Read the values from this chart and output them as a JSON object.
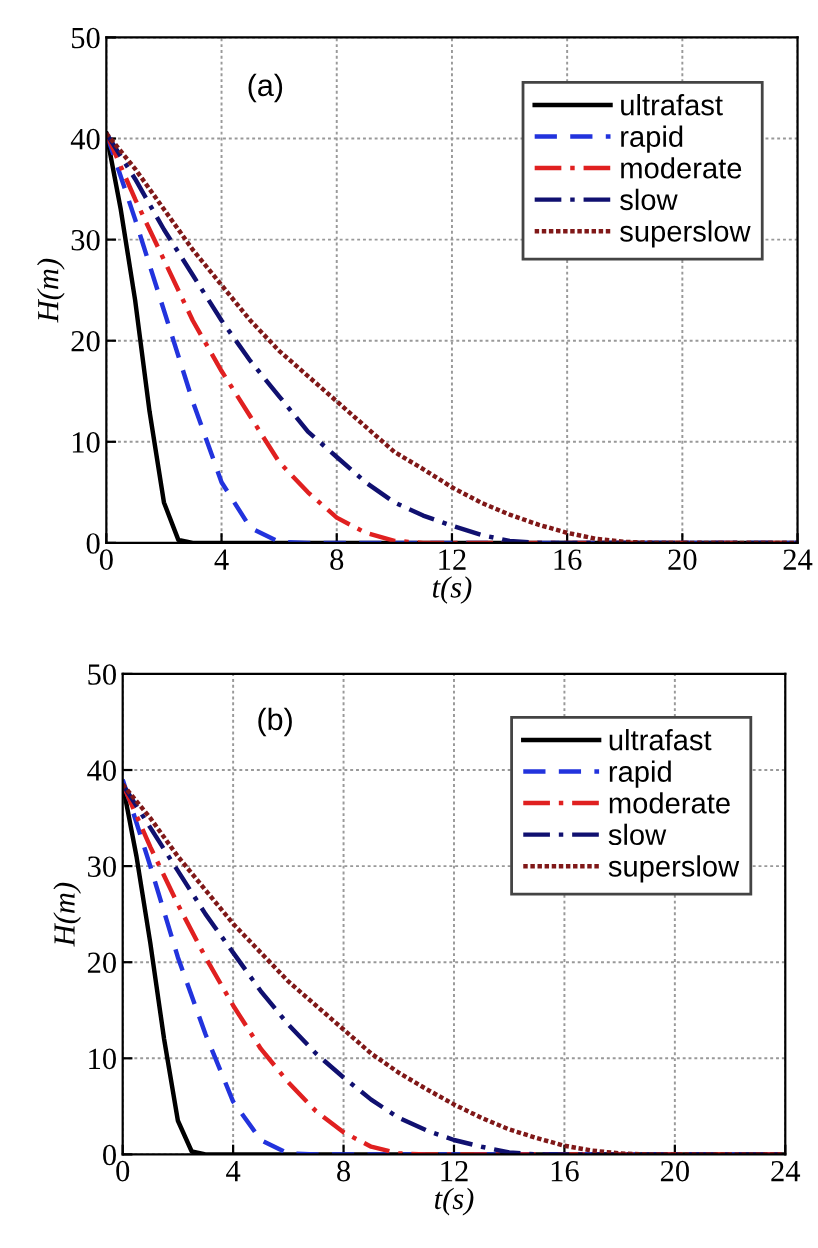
{
  "chart_data": [
    {
      "type": "line",
      "xlabel": "t(s)",
      "ylabel": "H(m)",
      "annotations": [
        "(a)"
      ],
      "xlim": [
        0,
        24
      ],
      "ylim": [
        0,
        50
      ],
      "xticks": [
        0,
        4,
        8,
        12,
        16,
        20,
        24
      ],
      "yticks": [
        0,
        10,
        20,
        30,
        40,
        50
      ],
      "grid": true,
      "legend": "top right",
      "series": [
        {
          "name": "ultrafast",
          "color": "#000000",
          "line_style": "solid",
          "x": [
            0,
            0.5,
            1,
            1.5,
            2,
            2.5,
            3,
            24
          ],
          "values": [
            40.5,
            33,
            24,
            13,
            4,
            0.3,
            0,
            0
          ]
        },
        {
          "name": "rapid",
          "color": "#2233dd",
          "line_style": "dashed",
          "x": [
            0,
            1,
            2,
            3,
            4,
            5,
            6,
            7,
            24
          ],
          "values": [
            40.5,
            32,
            23,
            14,
            6,
            1.5,
            0.1,
            0,
            0
          ]
        },
        {
          "name": "moderate",
          "color": "#e02020",
          "line_style": "dashdot",
          "x": [
            0,
            1,
            2,
            3,
            4,
            5,
            6,
            7,
            8,
            9,
            10,
            11,
            24
          ],
          "values": [
            40.5,
            34,
            28,
            22,
            17,
            12.5,
            8,
            5,
            2.5,
            1,
            0.2,
            0,
            0
          ]
        },
        {
          "name": "slow",
          "color": "#101070",
          "line_style": "dashdot",
          "x": [
            0,
            1,
            2,
            3,
            4,
            5,
            6,
            7,
            8,
            9,
            10,
            11,
            12,
            13,
            14,
            15,
            24
          ],
          "values": [
            40.5,
            36,
            31,
            26.5,
            22,
            18,
            14.5,
            11,
            8.5,
            6,
            4,
            2.7,
            1.7,
            0.8,
            0.2,
            0,
            0
          ]
        },
        {
          "name": "superslow",
          "color": "#801818",
          "line_style": "dotted",
          "x": [
            0,
            1,
            2,
            3,
            4,
            5,
            6,
            7,
            8,
            9,
            10,
            11,
            12,
            13,
            14,
            15,
            16,
            17,
            18,
            19,
            24
          ],
          "values": [
            40.5,
            37,
            33,
            29,
            25.5,
            22,
            19,
            16.5,
            14,
            11.5,
            9,
            7.3,
            5.5,
            4,
            2.8,
            1.8,
            1,
            0.4,
            0.1,
            0,
            0
          ]
        }
      ]
    },
    {
      "type": "line",
      "xlabel": "t(s)",
      "ylabel": "H(m)",
      "annotations": [
        "(b)"
      ],
      "xlim": [
        0,
        24
      ],
      "ylim": [
        0,
        50
      ],
      "xticks": [
        0,
        4,
        8,
        12,
        16,
        20,
        24
      ],
      "yticks": [
        0,
        10,
        20,
        30,
        40,
        50
      ],
      "grid": true,
      "legend": "top right",
      "series": [
        {
          "name": "ultrafast",
          "color": "#000000",
          "line_style": "solid",
          "x": [
            0,
            0.5,
            1,
            1.5,
            2,
            2.5,
            3,
            24
          ],
          "values": [
            38.5,
            31,
            22,
            12,
            3.5,
            0.3,
            0,
            0
          ]
        },
        {
          "name": "rapid",
          "color": "#2233dd",
          "line_style": "dashed",
          "x": [
            0,
            1,
            2,
            3,
            4,
            5,
            6,
            7,
            24
          ],
          "values": [
            39,
            30,
            20.5,
            12.5,
            5.5,
            1.5,
            0.1,
            0,
            0
          ]
        },
        {
          "name": "moderate",
          "color": "#e02020",
          "line_style": "dashdot",
          "x": [
            0,
            1,
            2,
            3,
            4,
            5,
            6,
            7,
            8,
            9,
            10,
            11,
            24
          ],
          "values": [
            38.5,
            32,
            26,
            20.5,
            15.5,
            11,
            7.5,
            4.5,
            2.3,
            0.8,
            0.1,
            0,
            0
          ]
        },
        {
          "name": "slow",
          "color": "#101070",
          "line_style": "dashdot",
          "x": [
            0,
            1,
            2,
            3,
            4,
            5,
            6,
            7,
            8,
            9,
            10,
            11,
            12,
            13,
            14,
            15,
            24
          ],
          "values": [
            38.5,
            34,
            29.5,
            25,
            21,
            17,
            13.5,
            10.5,
            8,
            5.7,
            3.8,
            2.5,
            1.5,
            0.8,
            0.2,
            0,
            0
          ]
        },
        {
          "name": "superslow",
          "color": "#801818",
          "line_style": "dotted",
          "x": [
            0,
            1,
            2,
            3,
            4,
            5,
            6,
            7,
            8,
            9,
            10,
            11,
            12,
            13,
            14,
            15,
            16,
            17,
            18,
            19,
            24
          ],
          "values": [
            38.5,
            35,
            31,
            27.5,
            24,
            21,
            18,
            15.5,
            13,
            10.5,
            8.5,
            6.8,
            5.2,
            3.8,
            2.6,
            1.7,
            0.9,
            0.4,
            0.1,
            0,
            0
          ]
        }
      ]
    }
  ]
}
